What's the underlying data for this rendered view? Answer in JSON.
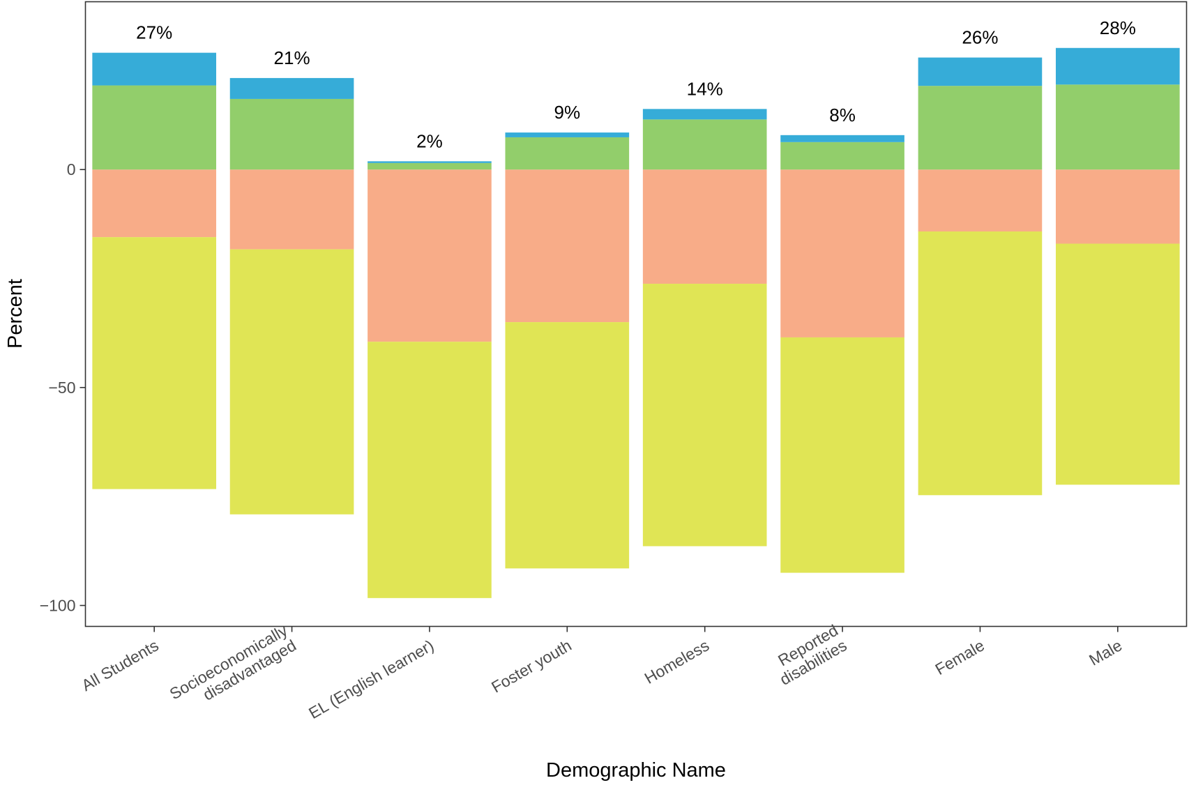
{
  "chart_data": {
    "type": "bar",
    "stacked": "diverging",
    "xlabel": "Demographic Name",
    "ylabel": "Percent",
    "ylim": [
      -104.8,
      38.5
    ],
    "yticks": [
      0,
      -50,
      -100
    ],
    "ytick_labels": [
      "0",
      "−50",
      "−100"
    ],
    "grid": false,
    "legend": "none",
    "categories": [
      "All Students",
      "Socioeconomically disadvantaged",
      "EL (English learner)",
      "Foster youth",
      "Homeless",
      "Reported disabilities",
      "Female",
      "Male"
    ],
    "category_labels": [
      [
        "All Students"
      ],
      [
        "Socioeconomically",
        "disadvantaged"
      ],
      [
        "EL (English learner)"
      ],
      [
        "Foster youth"
      ],
      [
        "Homeless"
      ],
      [
        "Reported",
        "disabilities"
      ],
      [
        "Female"
      ],
      [
        "Male"
      ]
    ],
    "series": [
      {
        "color": "#F8AC88",
        "side": "negative",
        "values": [
          15.5,
          18.3,
          39.5,
          35,
          26.2,
          38.5,
          14.2,
          17
        ]
      },
      {
        "color": "#E0E555",
        "side": "negative",
        "values": [
          57.8,
          60.8,
          58.8,
          56.5,
          60.2,
          54,
          60.5,
          55.3
        ]
      },
      {
        "color": "#92CE6B",
        "side": "positive",
        "values": [
          19.3,
          16.2,
          1.5,
          7.4,
          11.5,
          6.3,
          19.2,
          19.5
        ]
      },
      {
        "color": "#36ACD8",
        "side": "positive",
        "values": [
          7.5,
          4.8,
          0.4,
          1.1,
          2.4,
          1.6,
          6.5,
          8.4
        ]
      }
    ],
    "data_labels": [
      "27%",
      "21%",
      "2%",
      "9%",
      "14%",
      "8%",
      "26%",
      "28%"
    ]
  }
}
